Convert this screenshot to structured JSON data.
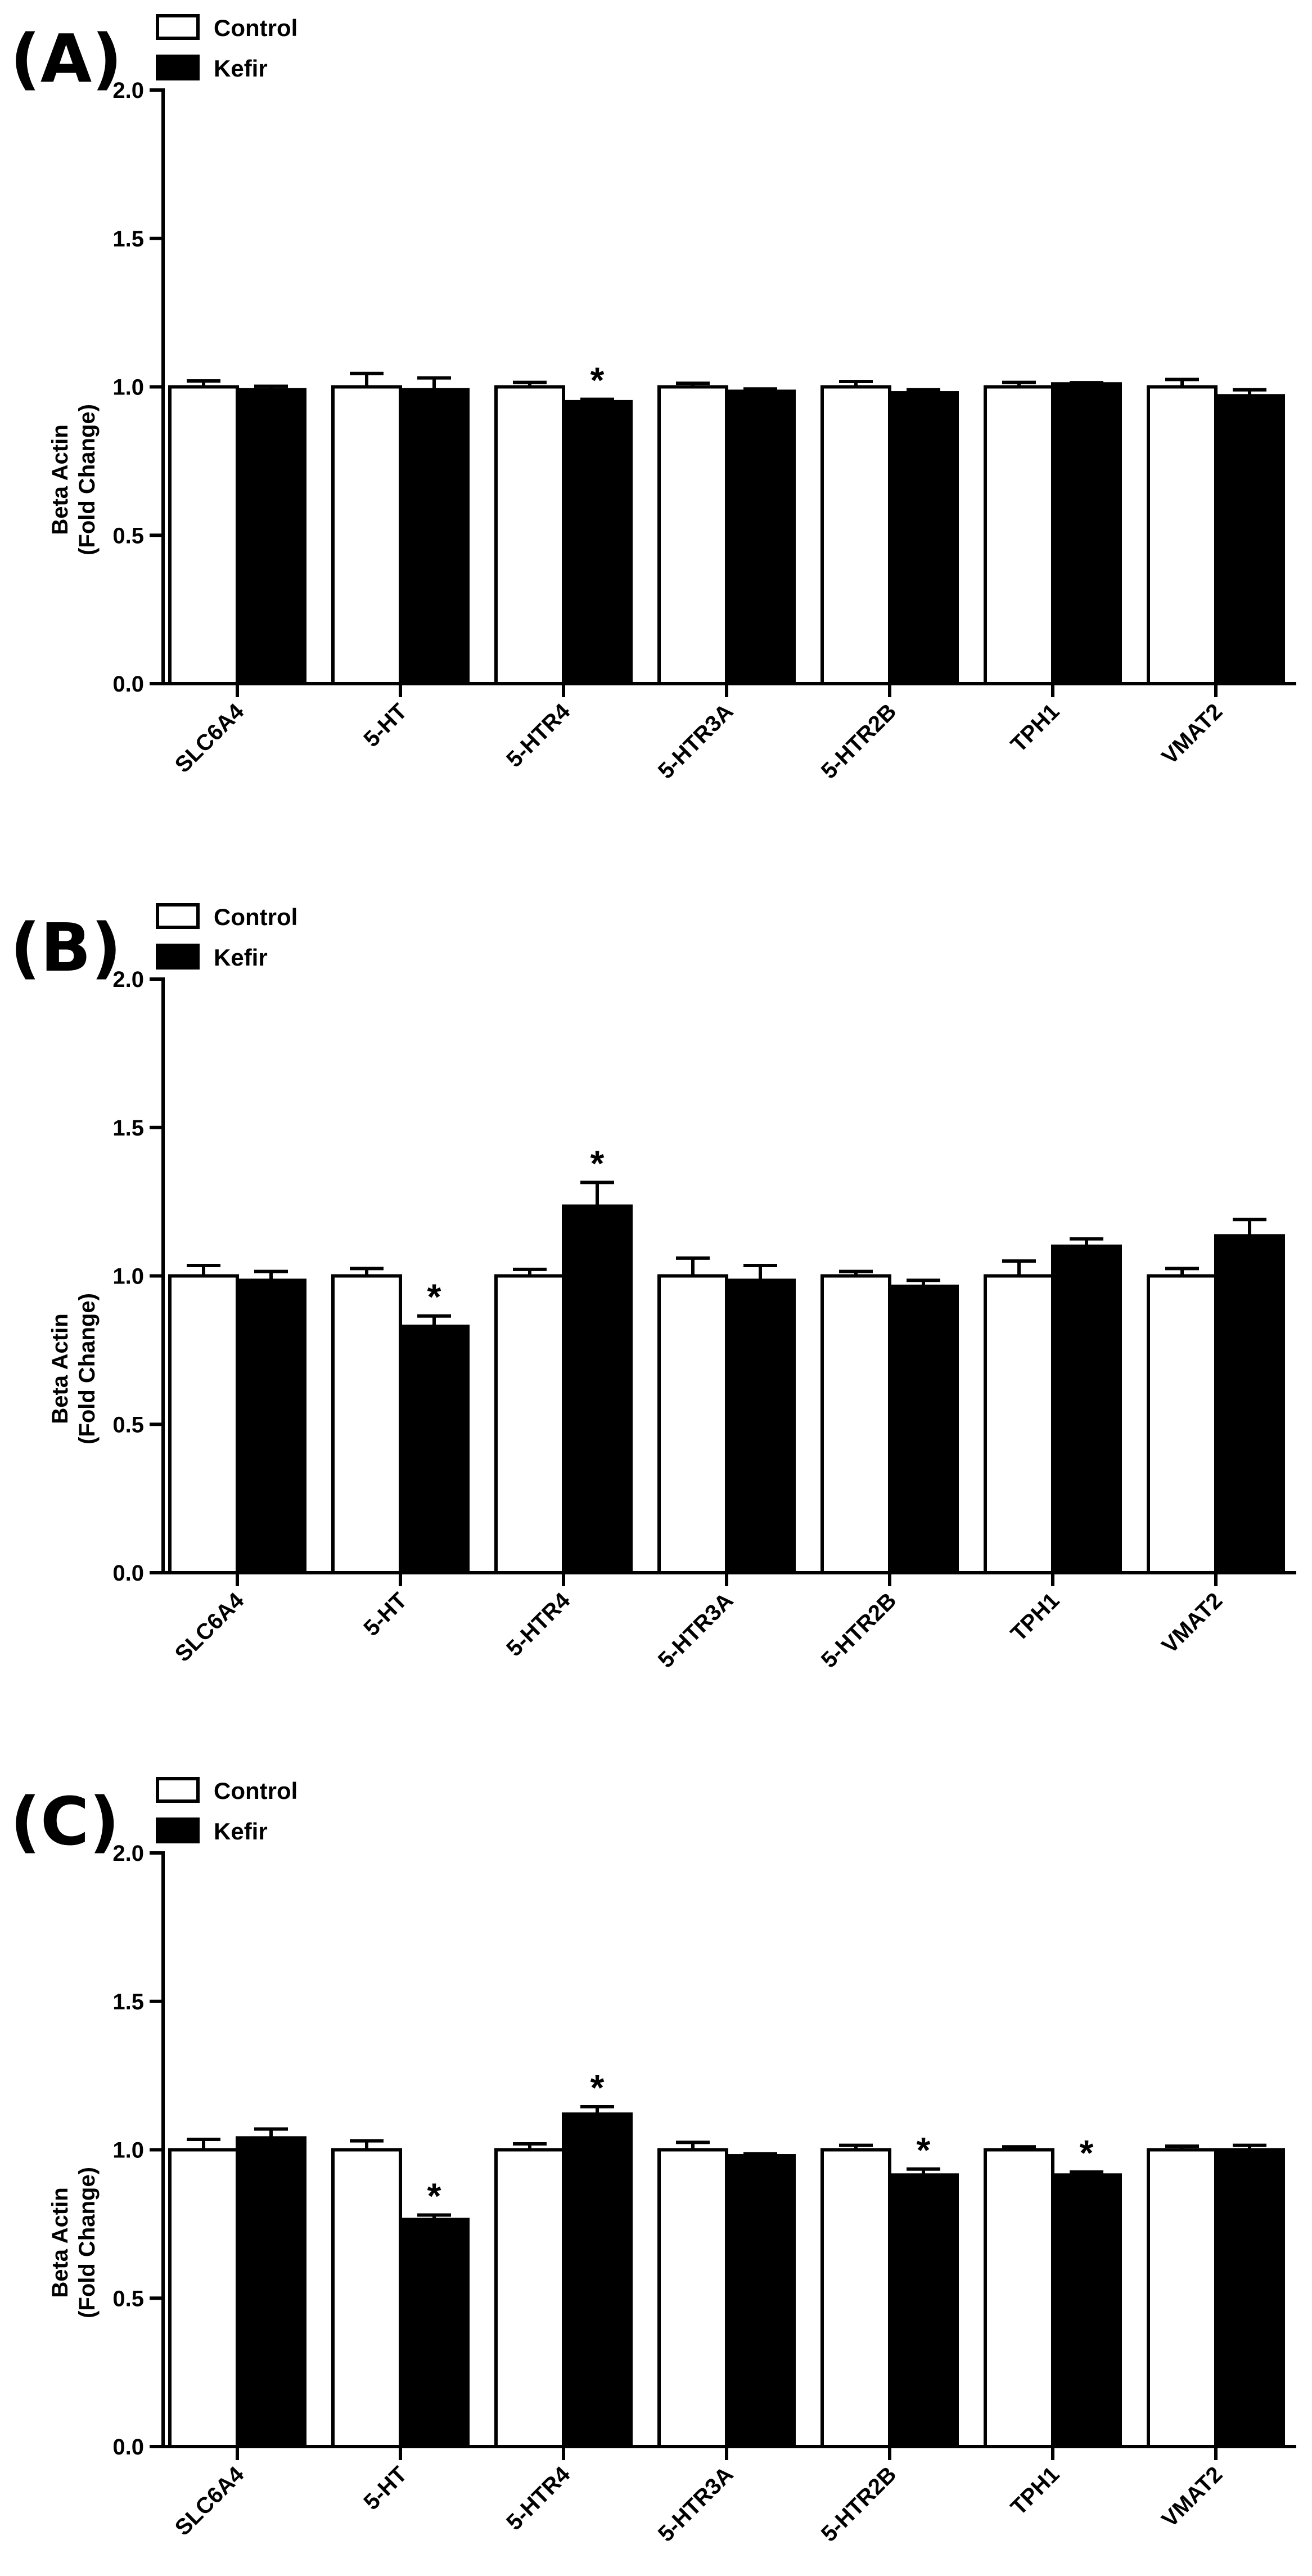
{
  "colors": {
    "control": "#ffffff",
    "kefir": "#000000",
    "axis": "#000000"
  },
  "chart_data": [
    {
      "type": "bar",
      "panel_label": "(A)",
      "ylabel_line1": "Beta Actin",
      "ylabel_line2": "(Fold Change)",
      "ylim": [
        0,
        2.0
      ],
      "yticks": [
        "0.0",
        "0.5",
        "1.0",
        "1.5",
        "2.0"
      ],
      "categories": [
        "SLC6A4",
        "5-HT",
        "5-HTR4",
        "5-HTR3A",
        "5-HTR2B",
        "TPH1",
        "VMAT2"
      ],
      "legend": [
        "Control",
        "Kefir"
      ],
      "legend_position": "top-left",
      "series": [
        {
          "name": "Control",
          "values": [
            1.0,
            1.0,
            1.0,
            1.0,
            1.0,
            1.0,
            1.0
          ],
          "errors": [
            0.02,
            0.045,
            0.015,
            0.012,
            0.018,
            0.015,
            0.025
          ]
        },
        {
          "name": "Kefir",
          "values": [
            0.99,
            0.99,
            0.95,
            0.985,
            0.98,
            1.01,
            0.97
          ],
          "errors": [
            0.012,
            0.04,
            0.008,
            0.008,
            0.01,
            0.004,
            0.02
          ]
        }
      ],
      "significance": [
        "",
        "",
        "*",
        "",
        "",
        "",
        ""
      ]
    },
    {
      "type": "bar",
      "panel_label": "(B)",
      "ylabel_line1": "Beta Actin",
      "ylabel_line2": "(Fold Change)",
      "ylim": [
        0,
        2.0
      ],
      "yticks": [
        "0.0",
        "0.5",
        "1.0",
        "1.5",
        "2.0"
      ],
      "categories": [
        "SLC6A4",
        "5-HT",
        "5-HTR4",
        "5-HTR3A",
        "5-HTR2B",
        "TPH1",
        "VMAT2"
      ],
      "legend": [
        "Control",
        "Kefir"
      ],
      "legend_position": "top-left",
      "series": [
        {
          "name": "Control",
          "values": [
            1.0,
            1.0,
            1.0,
            1.0,
            1.0,
            1.0,
            1.0
          ],
          "errors": [
            0.035,
            0.025,
            0.022,
            0.06,
            0.015,
            0.05,
            0.025
          ]
        },
        {
          "name": "Kefir",
          "values": [
            0.985,
            0.83,
            1.235,
            0.985,
            0.965,
            1.1,
            1.135
          ],
          "errors": [
            0.03,
            0.035,
            0.08,
            0.05,
            0.02,
            0.025,
            0.055
          ]
        }
      ],
      "significance": [
        "",
        "*",
        "*",
        "",
        "",
        "",
        ""
      ]
    },
    {
      "type": "bar",
      "panel_label": "(C)",
      "ylabel_line1": "Beta Actin",
      "ylabel_line2": "(Fold Change)",
      "ylim": [
        0,
        2.0
      ],
      "yticks": [
        "0.0",
        "0.5",
        "1.0",
        "1.5",
        "2.0"
      ],
      "categories": [
        "SLC6A4",
        "5-HT",
        "5-HTR4",
        "5-HTR3A",
        "5-HTR2B",
        "TPH1",
        "VMAT2"
      ],
      "legend": [
        "Control",
        "Kefir"
      ],
      "legend_position": "top-left",
      "series": [
        {
          "name": "Control",
          "values": [
            1.0,
            1.0,
            1.0,
            1.0,
            1.0,
            1.0,
            1.0
          ],
          "errors": [
            0.035,
            0.03,
            0.02,
            0.025,
            0.015,
            0.01,
            0.012
          ]
        },
        {
          "name": "Kefir",
          "values": [
            1.04,
            0.765,
            1.12,
            0.98,
            0.915,
            0.915,
            1.0
          ],
          "errors": [
            0.03,
            0.015,
            0.025,
            0.006,
            0.02,
            0.01,
            0.015
          ]
        }
      ],
      "significance": [
        "",
        "*",
        "*",
        "",
        "*",
        "*",
        ""
      ]
    }
  ]
}
